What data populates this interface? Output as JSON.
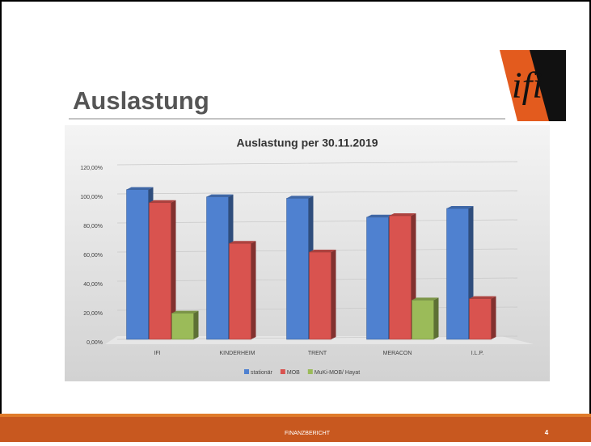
{
  "slide": {
    "title": "Auslastung",
    "logo": "ifi",
    "footer": "FINANZBERICHT",
    "page": "4"
  },
  "chart_data": {
    "type": "bar",
    "title": "Auslastung per 30.11.2019",
    "categories": [
      "IFI",
      "KINDERHEIM",
      "TRENT",
      "MERACON",
      "I.L.P."
    ],
    "series": [
      {
        "name": "stationär",
        "color": "#4f81d0",
        "values": [
          103,
          98,
          97,
          84,
          90
        ]
      },
      {
        "name": "MOB",
        "color": "#d9534f",
        "values": [
          94,
          66,
          60,
          85,
          28
        ]
      },
      {
        "name": "MuKi-MOB/ Hayat",
        "color": "#9bbb59",
        "values": [
          18,
          null,
          null,
          27,
          null
        ]
      }
    ],
    "ylim": [
      0,
      120
    ],
    "yticks": [
      {
        "value": 0,
        "label": "0,00%"
      },
      {
        "value": 20,
        "label": "20,00%"
      },
      {
        "value": 40,
        "label": "40,00%"
      },
      {
        "value": 60,
        "label": "60,00%"
      },
      {
        "value": 80,
        "label": "80,00%"
      },
      {
        "value": 100,
        "label": "100,00%"
      },
      {
        "value": 120,
        "label": "120,00%"
      }
    ],
    "legend": "bottom"
  }
}
